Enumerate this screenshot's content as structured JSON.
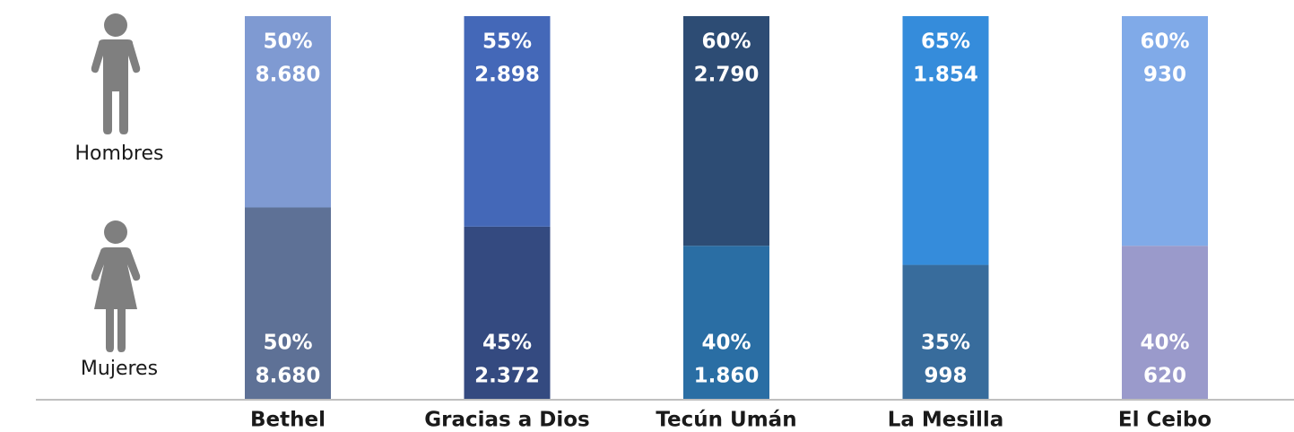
{
  "chart_data": {
    "type": "stacked_bar",
    "categories": [
      "Bethel",
      "Gracias a Dios",
      "Tecún Umán",
      "La Mesilla",
      "El Ceibo"
    ],
    "ylim": [
      0,
      100
    ],
    "series": [
      {
        "name": "Mujeres",
        "colors": [
          "#5e7196",
          "#344a80",
          "#2a6ea4",
          "#386c9c",
          "#9a9acb"
        ],
        "values": [
          50,
          45,
          40,
          35,
          40
        ],
        "value_labels": [
          "50%",
          "45%",
          "40%",
          "35%",
          "40%"
        ],
        "counts": [
          {
            "value": 8680,
            "label": "8.680"
          },
          {
            "value": 2372,
            "label": "2.372"
          },
          {
            "value": 1860,
            "label": "1.860"
          },
          {
            "value": 998,
            "label": "998"
          },
          {
            "value": 620,
            "label": "620"
          }
        ]
      },
      {
        "name": "Hombres",
        "colors": [
          "#7f9ad2",
          "#4468b8",
          "#2d4c74",
          "#358cdb",
          "#80aae8"
        ],
        "values": [
          50,
          55,
          60,
          65,
          60
        ],
        "value_labels": [
          "50%",
          "55%",
          "60%",
          "65%",
          "60%"
        ],
        "counts": [
          {
            "value": 8680,
            "label": "8.680"
          },
          {
            "value": 2898,
            "label": "2.898"
          },
          {
            "value": 2790,
            "label": "2.790"
          },
          {
            "value": 1854,
            "label": "1.854"
          },
          {
            "value": 930,
            "label": "930"
          }
        ]
      }
    ]
  }
}
